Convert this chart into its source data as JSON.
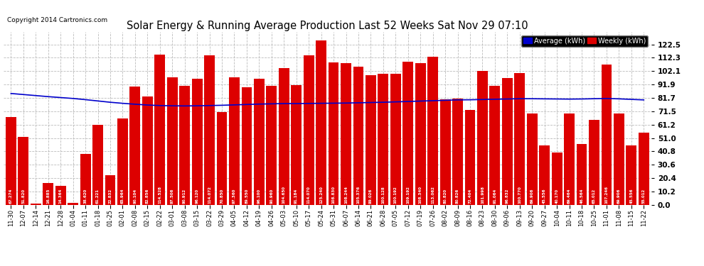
{
  "title": "Solar Energy & Running Average Production Last 52 Weeks Sat Nov 29 07:10",
  "copyright": "Copyright 2014 Cartronics.com",
  "ylim": [
    0,
    132
  ],
  "yticks": [
    0.0,
    10.2,
    20.4,
    30.6,
    40.8,
    51.0,
    61.2,
    71.5,
    81.7,
    91.9,
    102.1,
    112.3,
    122.5
  ],
  "bar_color": "#dd0000",
  "avg_color": "#0000cc",
  "legend_avg_label": "Average (kWh)",
  "legend_weekly_label": "Weekly (kWh)",
  "background_color": "#ffffff",
  "grid_color": "#bbbbbb",
  "categories": [
    "11-30",
    "12-07",
    "12-14",
    "12-21",
    "12-28",
    "01-04",
    "01-11",
    "01-18",
    "01-25",
    "02-01",
    "02-08",
    "02-15",
    "02-22",
    "03-01",
    "03-08",
    "03-15",
    "03-22",
    "03-29",
    "04-05",
    "04-12",
    "04-19",
    "04-26",
    "05-03",
    "05-10",
    "05-17",
    "05-24",
    "05-31",
    "06-07",
    "06-14",
    "06-21",
    "06-28",
    "07-05",
    "07-12",
    "07-19",
    "07-26",
    "08-02",
    "08-09",
    "08-16",
    "08-23",
    "08-30",
    "09-06",
    "09-13",
    "09-20",
    "09-27",
    "10-04",
    "10-11",
    "10-18",
    "10-25",
    "11-01",
    "11-08",
    "11-15",
    "11-22"
  ],
  "weekly_values": [
    67.274,
    51.82,
    1.053,
    16.885,
    14.364,
    1.752,
    38.62,
    61.221,
    22.832,
    65.964,
    90.104,
    82.856,
    114.528,
    97.506,
    90.912,
    96.12,
    114.072,
    70.85,
    97.36,
    89.55,
    96.1,
    90.96,
    104.65,
    91.184,
    114.07,
    125.24,
    108.83,
    108.244,
    105.376,
    99.026,
    100.128,
    100.192,
    109.192,
    108.34,
    113.062,
    80.82,
    80.826,
    72.404,
    101.998,
    91.064,
    96.832,
    100.77,
    69.906,
    45.556,
    40.17,
    69.464,
    46.564,
    65.012,
    107.246,
    69.906,
    45.556,
    55.012
  ],
  "avg_values": [
    85.0,
    84.2,
    83.4,
    82.6,
    81.9,
    81.2,
    80.3,
    79.3,
    78.3,
    77.5,
    76.8,
    76.2,
    75.8,
    75.6,
    75.5,
    75.6,
    75.8,
    76.0,
    76.3,
    76.6,
    76.9,
    77.1,
    77.3,
    77.3,
    77.4,
    77.5,
    77.6,
    77.7,
    77.9,
    78.1,
    78.3,
    78.6,
    78.9,
    79.2,
    79.5,
    79.8,
    80.1,
    80.2,
    80.4,
    80.6,
    80.8,
    81.0,
    81.0,
    80.9,
    80.8,
    80.7,
    80.8,
    81.0,
    81.2,
    80.9,
    80.5,
    80.1
  ]
}
